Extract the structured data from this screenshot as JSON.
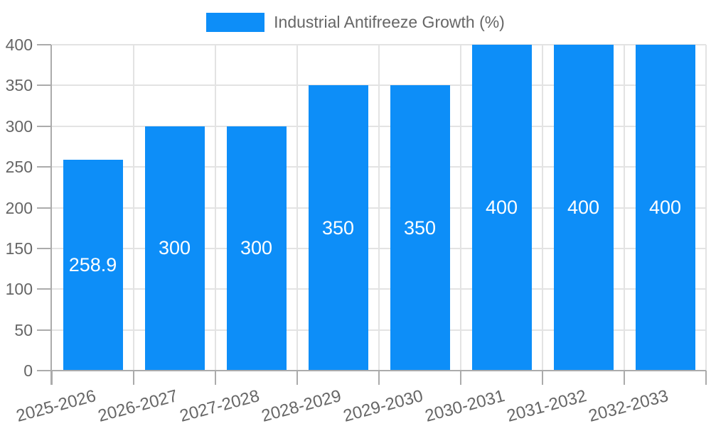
{
  "legend": {
    "label": "Industrial Antifreeze Growth (%)"
  },
  "colors": {
    "bar": "#0d8ef8",
    "axis_text": "#666666",
    "grid_line": "#e3e3e3",
    "axis_line": "#ababab",
    "data_label": "#ffffff",
    "background": "#ffffff"
  },
  "chart_data": {
    "type": "bar",
    "title": "Industrial Antifreeze Growth (%)",
    "categories": [
      "2025-2026",
      "2026-2027",
      "2027-2028",
      "2028-2029",
      "2029-2030",
      "2030-2031",
      "2031-2032",
      "2032-2033"
    ],
    "values": [
      258.9,
      300,
      300,
      350,
      350,
      400,
      400,
      400
    ],
    "data_labels": [
      "258.9",
      "300",
      "300",
      "350",
      "350",
      "400",
      "400",
      "400"
    ],
    "xlabel": "",
    "ylabel": "",
    "ylim": [
      0,
      400
    ],
    "yticks": [
      0,
      50,
      100,
      150,
      200,
      250,
      300,
      350,
      400
    ],
    "grid": true,
    "legend_position": "top",
    "x_label_rotation_deg": -15
  }
}
